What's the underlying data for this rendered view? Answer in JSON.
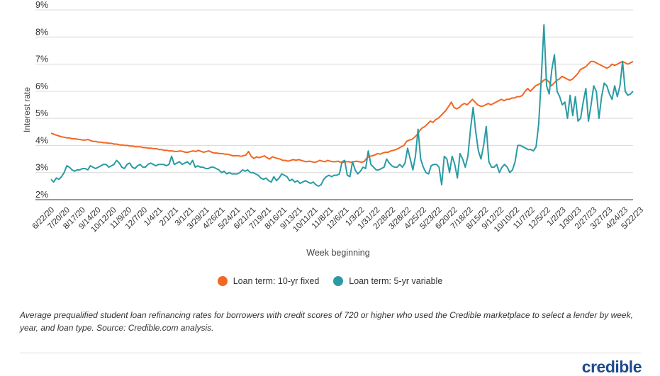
{
  "chart_data": {
    "type": "line",
    "title": "",
    "xlabel": "Week beginning",
    "ylabel": "Interest rate",
    "ylim": [
      2,
      9
    ],
    "yticks": [
      "9%",
      "8%",
      "7%",
      "6%",
      "5%",
      "4%",
      "3%",
      "2%"
    ],
    "ytick_values": [
      9,
      8,
      7,
      6,
      5,
      4,
      3,
      2
    ],
    "x_tick_labels": [
      "6/22/20",
      "7/20/20",
      "8/17/20",
      "9/14/20",
      "10/12/20",
      "11/9/20",
      "12/7/20",
      "1/4/21",
      "2/1/21",
      "3/1/21",
      "3/29/21",
      "4/26/21",
      "5/24/21",
      "6/21/21",
      "7/19/21",
      "8/16/21",
      "9/13/21",
      "10/11/21",
      "11/8/21",
      "12/6/21",
      "1/3/22",
      "1/31/22",
      "2/28/22",
      "3/28/22",
      "4/25/22",
      "5/23/22",
      "6/20/22",
      "7/18/22",
      "8/15/22",
      "9/12/22",
      "10/10/22",
      "11/7/22",
      "12/5/22",
      "1/2/23",
      "1/30/23",
      "2/27/23",
      "3/27/23",
      "4/24/23",
      "5/22/23"
    ],
    "grid": true,
    "legend_position": "bottom-center",
    "series": [
      {
        "name": "Loan term: 10-yr fixed",
        "color": "#f26722",
        "values": [
          4.45,
          4.42,
          4.38,
          4.35,
          4.32,
          4.3,
          4.28,
          4.28,
          4.25,
          4.25,
          4.23,
          4.22,
          4.2,
          4.2,
          4.22,
          4.18,
          4.15,
          4.15,
          4.12,
          4.12,
          4.1,
          4.1,
          4.08,
          4.08,
          4.05,
          4.05,
          4.02,
          4.02,
          4.0,
          4.0,
          3.98,
          3.98,
          3.95,
          3.95,
          3.95,
          3.92,
          3.92,
          3.9,
          3.9,
          3.88,
          3.88,
          3.85,
          3.85,
          3.82,
          3.82,
          3.8,
          3.8,
          3.78,
          3.78,
          3.8,
          3.78,
          3.75,
          3.75,
          3.78,
          3.8,
          3.78,
          3.82,
          3.78,
          3.75,
          3.78,
          3.8,
          3.75,
          3.72,
          3.72,
          3.7,
          3.7,
          3.68,
          3.68,
          3.65,
          3.62,
          3.62,
          3.62,
          3.6,
          3.62,
          3.65,
          3.78,
          3.6,
          3.52,
          3.58,
          3.55,
          3.58,
          3.62,
          3.55,
          3.5,
          3.58,
          3.55,
          3.52,
          3.5,
          3.45,
          3.45,
          3.42,
          3.45,
          3.48,
          3.45,
          3.48,
          3.45,
          3.42,
          3.4,
          3.42,
          3.4,
          3.38,
          3.4,
          3.45,
          3.42,
          3.4,
          3.45,
          3.42,
          3.4,
          3.4,
          3.42,
          3.38,
          3.38,
          3.4,
          3.4,
          3.38,
          3.4,
          3.42,
          3.4,
          3.38,
          3.42,
          3.55,
          3.6,
          3.62,
          3.65,
          3.7,
          3.68,
          3.72,
          3.75,
          3.75,
          3.8,
          3.82,
          3.85,
          3.9,
          3.95,
          4.0,
          4.15,
          4.2,
          4.22,
          4.3,
          4.4,
          4.55,
          4.65,
          4.7,
          4.8,
          4.9,
          4.85,
          4.95,
          5.0,
          5.1,
          5.2,
          5.3,
          5.45,
          5.6,
          5.4,
          5.35,
          5.4,
          5.5,
          5.55,
          5.5,
          5.6,
          5.7,
          5.6,
          5.5,
          5.45,
          5.45,
          5.5,
          5.55,
          5.5,
          5.55,
          5.6,
          5.65,
          5.7,
          5.65,
          5.7,
          5.7,
          5.75,
          5.75,
          5.8,
          5.8,
          5.85,
          6.0,
          6.1,
          6.0,
          6.1,
          6.2,
          6.25,
          6.3,
          6.4,
          6.45,
          6.35,
          6.2,
          6.3,
          6.4,
          6.45,
          6.55,
          6.5,
          6.45,
          6.4,
          6.45,
          6.55,
          6.65,
          6.8,
          6.85,
          6.9,
          7.0,
          7.1,
          7.1,
          7.05,
          7.0,
          6.95,
          6.9,
          6.85,
          6.9,
          7.0,
          6.95,
          7.0,
          7.05,
          7.1,
          7.05,
          7.0,
          7.05,
          7.1
        ]
      },
      {
        "name": "Loan term: 5-yr variable",
        "color": "#2a9ba3",
        "values": [
          2.75,
          2.65,
          2.8,
          2.75,
          2.85,
          3.0,
          3.25,
          3.2,
          3.1,
          3.05,
          3.1,
          3.1,
          3.15,
          3.15,
          3.1,
          3.25,
          3.2,
          3.15,
          3.2,
          3.25,
          3.3,
          3.3,
          3.2,
          3.25,
          3.3,
          3.45,
          3.35,
          3.2,
          3.15,
          3.3,
          3.35,
          3.2,
          3.15,
          3.25,
          3.3,
          3.2,
          3.2,
          3.3,
          3.35,
          3.3,
          3.25,
          3.3,
          3.3,
          3.3,
          3.25,
          3.3,
          3.6,
          3.3,
          3.35,
          3.4,
          3.3,
          3.35,
          3.4,
          3.3,
          3.45,
          3.2,
          3.25,
          3.2,
          3.2,
          3.15,
          3.15,
          3.2,
          3.2,
          3.15,
          3.1,
          3.0,
          3.05,
          2.95,
          3.0,
          2.95,
          2.95,
          2.95,
          3.0,
          3.1,
          3.05,
          3.1,
          3.0,
          3.0,
          2.95,
          2.9,
          2.8,
          2.75,
          2.8,
          2.7,
          2.65,
          2.85,
          2.7,
          2.8,
          2.95,
          2.9,
          2.85,
          2.7,
          2.75,
          2.65,
          2.7,
          2.6,
          2.65,
          2.7,
          2.65,
          2.6,
          2.65,
          2.55,
          2.5,
          2.55,
          2.75,
          2.85,
          2.9,
          2.85,
          2.9,
          2.9,
          2.95,
          3.4,
          3.45,
          2.9,
          2.85,
          3.4,
          3.1,
          2.95,
          3.05,
          3.2,
          3.15,
          3.8,
          3.3,
          3.2,
          3.1,
          3.1,
          3.15,
          3.2,
          3.5,
          3.35,
          3.25,
          3.2,
          3.2,
          3.3,
          3.2,
          3.35,
          3.9,
          3.5,
          3.1,
          3.6,
          4.6,
          3.5,
          3.2,
          3.0,
          2.95,
          3.25,
          3.3,
          3.3,
          3.2,
          2.55,
          3.6,
          3.5,
          3.0,
          3.6,
          3.3,
          2.8,
          3.7,
          3.5,
          3.2,
          3.6,
          4.6,
          5.4,
          4.5,
          3.8,
          3.5,
          4.0,
          4.7,
          3.4,
          3.2,
          3.2,
          3.3,
          3.0,
          3.2,
          3.3,
          3.2,
          3.0,
          3.1,
          3.4,
          4.0,
          4.0,
          3.95,
          3.9,
          3.85,
          3.85,
          3.8,
          3.95,
          4.8,
          6.5,
          8.45,
          6.2,
          5.9,
          6.8,
          7.35,
          6.0,
          5.8,
          5.5,
          5.6,
          5.0,
          5.85,
          5.1,
          5.8,
          4.9,
          5.0,
          5.6,
          6.1,
          4.9,
          5.5,
          6.2,
          6.0,
          5.0,
          5.8,
          6.3,
          6.2,
          5.9,
          5.7,
          6.2,
          5.8,
          6.2,
          7.1,
          6.0,
          5.85,
          5.9,
          6.0
        ]
      }
    ]
  },
  "legend": {
    "fixed_label": "Loan term: 10-yr fixed",
    "variable_label": "Loan term: 5-yr variable",
    "fixed_color": "#f26722",
    "variable_color": "#2a9ba3"
  },
  "caption": "Average prequalified student loan refinancing rates for borrowers with credit scores of 720 or higher who used the Credible marketplace to select a lender by week, year, and loan type. Source: Credible.com analysis.",
  "logo_text": "credible"
}
